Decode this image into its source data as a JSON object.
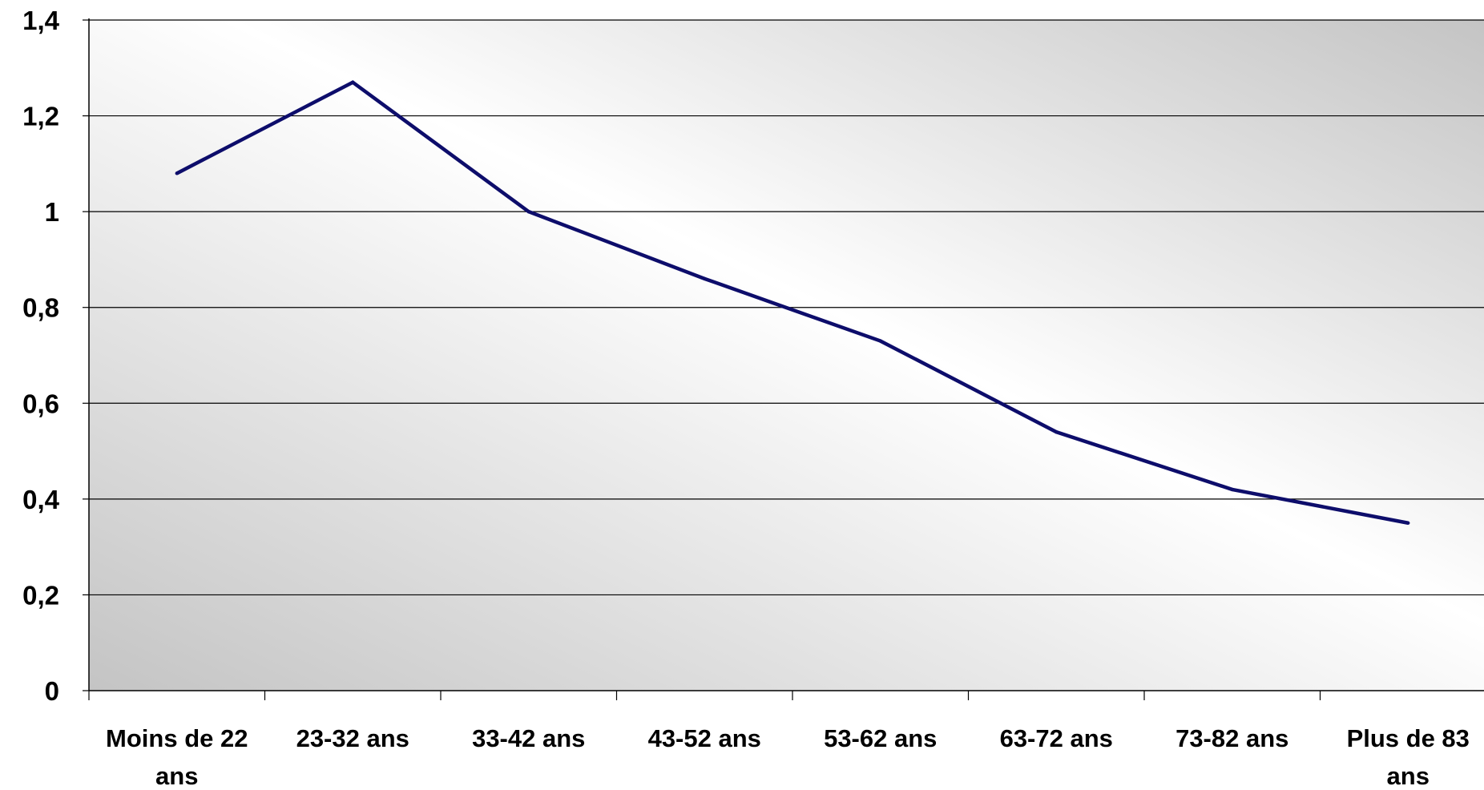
{
  "chart_data": {
    "type": "line",
    "title": "",
    "xlabel": "",
    "ylabel": "",
    "categories": [
      [
        "Moins de 22",
        "ans"
      ],
      [
        "23-32 ans"
      ],
      [
        "33-42 ans"
      ],
      [
        "43-52 ans"
      ],
      [
        "53-62 ans"
      ],
      [
        "63-72 ans"
      ],
      [
        "73-82 ans"
      ],
      [
        "Plus de 83",
        "ans"
      ]
    ],
    "series": [
      {
        "values": [
          1.08,
          1.27,
          1.0,
          0.86,
          0.73,
          0.54,
          0.42,
          0.35
        ]
      }
    ],
    "ylim": [
      0,
      1.4
    ],
    "yticks": [
      0,
      0.2,
      0.4,
      0.6,
      0.8,
      1,
      1.2,
      1.4
    ],
    "ytick_labels": [
      "0",
      "0,2",
      "0,4",
      "0,6",
      "0,8",
      "1",
      "1,2",
      "1,4"
    ],
    "grid": true,
    "legend": "none",
    "colors": {
      "line": "#0d0d6b",
      "grid": "#000000",
      "background_light": "#ffffff",
      "background_dark": "#c4c4c4"
    }
  }
}
